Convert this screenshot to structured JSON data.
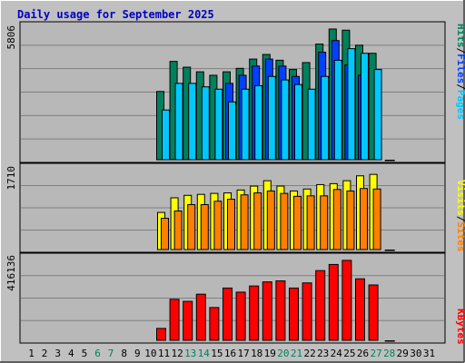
{
  "title": "Daily usage for September 2025",
  "legend_top": {
    "pages": "Pages",
    "files": "Files",
    "hits": "Hits",
    "sep": "/"
  },
  "legend_mid": {
    "sites": "Sites",
    "visits": "Visits",
    "sep": "/"
  },
  "legend_bottom": {
    "kbytes": "KBytes"
  },
  "colors": {
    "background": "#c0c0c0",
    "plot_bg": "#b8b8b8",
    "grid": "#808080",
    "title": "#0000c0",
    "hits": "#00805c",
    "files": "#0040ff",
    "pages": "#00c8ff",
    "visits": "#ffff00",
    "sites": "#ff8000",
    "kbytes": "#ff0000",
    "weekend_label": "#00805c"
  },
  "chart_data": [
    {
      "type": "bar",
      "title": "Daily usage for September 2025",
      "ymax_label": "5806",
      "ylim": [
        0,
        5806
      ],
      "categories": [
        "1",
        "2",
        "3",
        "4",
        "5",
        "6",
        "7",
        "8",
        "9",
        "10",
        "11",
        "12",
        "13",
        "14",
        "15",
        "16",
        "17",
        "18",
        "19",
        "20",
        "21",
        "22",
        "23",
        "24",
        "25",
        "26",
        "27",
        "28",
        "29",
        "30",
        "31"
      ],
      "weekend_days": [
        "6",
        "7",
        "13",
        "14",
        "20",
        "21",
        "27",
        "28"
      ],
      "series": [
        {
          "name": "Hits",
          "values": [
            0,
            0,
            0,
            0,
            0,
            0,
            0,
            0,
            0,
            0,
            2950,
            4250,
            4000,
            3800,
            3650,
            3800,
            3950,
            4350,
            4550,
            4300,
            3900,
            4200,
            5000,
            5650,
            5600,
            4950,
            4600,
            0,
            0,
            0,
            0
          ]
        },
        {
          "name": "Files",
          "values": [
            0,
            0,
            0,
            0,
            0,
            0,
            0,
            0,
            0,
            0,
            0,
            0,
            0,
            0,
            0,
            3300,
            3650,
            4050,
            4350,
            4050,
            3600,
            0,
            4650,
            5150,
            4100,
            3650,
            0,
            0,
            0,
            0,
            0
          ]
        },
        {
          "name": "Pages",
          "values": [
            0,
            0,
            0,
            0,
            0,
            0,
            0,
            0,
            0,
            0,
            2150,
            3300,
            3300,
            3150,
            3050,
            2500,
            3050,
            3200,
            3600,
            3450,
            3250,
            3050,
            3600,
            4300,
            4800,
            4600,
            3900,
            0,
            0,
            0,
            0
          ]
        }
      ]
    },
    {
      "type": "bar",
      "ymax_label": "1710",
      "ylim": [
        0,
        1710
      ],
      "categories": [
        "1",
        "2",
        "3",
        "4",
        "5",
        "6",
        "7",
        "8",
        "9",
        "10",
        "11",
        "12",
        "13",
        "14",
        "15",
        "16",
        "17",
        "18",
        "19",
        "20",
        "21",
        "22",
        "23",
        "24",
        "25",
        "26",
        "27",
        "28",
        "29",
        "30",
        "31"
      ],
      "series": [
        {
          "name": "Visits",
          "values": [
            0,
            0,
            0,
            0,
            0,
            0,
            0,
            0,
            0,
            0,
            760,
            1060,
            1110,
            1130,
            1150,
            1160,
            1220,
            1300,
            1410,
            1300,
            1200,
            1240,
            1330,
            1350,
            1410,
            1510,
            1540,
            0,
            0,
            0,
            0
          ]
        },
        {
          "name": "Sites",
          "values": [
            0,
            0,
            0,
            0,
            0,
            0,
            0,
            0,
            0,
            0,
            640,
            790,
            920,
            920,
            990,
            1030,
            1120,
            1160,
            1200,
            1150,
            1090,
            1100,
            1100,
            1230,
            1200,
            1250,
            1240,
            0,
            0,
            0,
            0
          ]
        }
      ]
    },
    {
      "type": "bar",
      "ymax_label": "416136",
      "ylim": [
        0,
        416136
      ],
      "categories": [
        "1",
        "2",
        "3",
        "4",
        "5",
        "6",
        "7",
        "8",
        "9",
        "10",
        "11",
        "12",
        "13",
        "14",
        "15",
        "16",
        "17",
        "18",
        "19",
        "20",
        "21",
        "22",
        "23",
        "24",
        "25",
        "26",
        "27",
        "28",
        "29",
        "30",
        "31"
      ],
      "series": [
        {
          "name": "KBytes",
          "values": [
            0,
            0,
            0,
            0,
            0,
            0,
            0,
            0,
            0,
            0,
            58000,
            200000,
            190000,
            225000,
            160000,
            255000,
            235000,
            265000,
            285000,
            290000,
            255000,
            280000,
            340000,
            370000,
            390000,
            300000,
            270000,
            0,
            0,
            0,
            0
          ]
        }
      ]
    }
  ]
}
